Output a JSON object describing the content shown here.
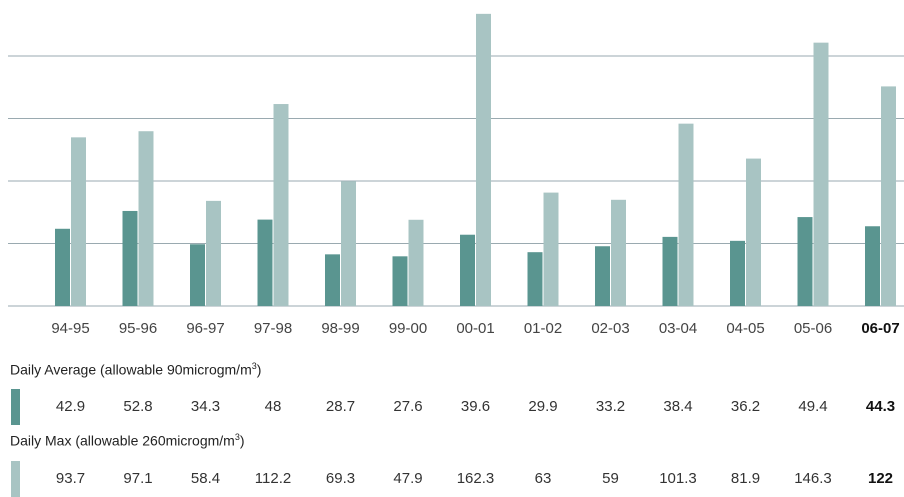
{
  "chart_data": {
    "type": "bar",
    "categories": [
      "94-95",
      "95-96",
      "96-97",
      "97-98",
      "98-99",
      "99-00",
      "00-01",
      "01-02",
      "02-03",
      "03-04",
      "04-05",
      "05-06",
      "06-07"
    ],
    "highlight_category": "06-07",
    "series": [
      {
        "name": "Daily Average",
        "values": [
          42.9,
          52.8,
          34.3,
          48,
          28.7,
          27.6,
          39.6,
          29.9,
          33.2,
          38.4,
          36.2,
          49.4,
          44.3
        ],
        "color": "#5a9590"
      },
      {
        "name": "Daily Max",
        "values": [
          93.7,
          97.1,
          58.4,
          112.2,
          69.3,
          47.9,
          162.3,
          63,
          59,
          101.3,
          81.9,
          146.3,
          122
        ],
        "color": "#a8c4c3"
      }
    ],
    "grid": true,
    "gridline_count": 5,
    "grid_color": "#9aaab0",
    "axis_labels_shown": false
  },
  "table": {
    "avg": {
      "title": "Daily Average (allowable 90microgm/m",
      "sup": "3",
      "close": ")",
      "values": [
        "42.9",
        "52.8",
        "34.3",
        "48",
        "28.7",
        "27.6",
        "39.6",
        "29.9",
        "33.2",
        "38.4",
        "36.2",
        "49.4",
        "44.3"
      ]
    },
    "max": {
      "title": "Daily Max (allowable 260microgm/m",
      "sup": "3",
      "close": ")",
      "values": [
        "93.7",
        "97.1",
        "58.4",
        "112.2",
        "69.3",
        "47.9",
        "162.3",
        "63",
        "59",
        "101.3",
        "81.9",
        "146.3",
        "122"
      ]
    }
  }
}
